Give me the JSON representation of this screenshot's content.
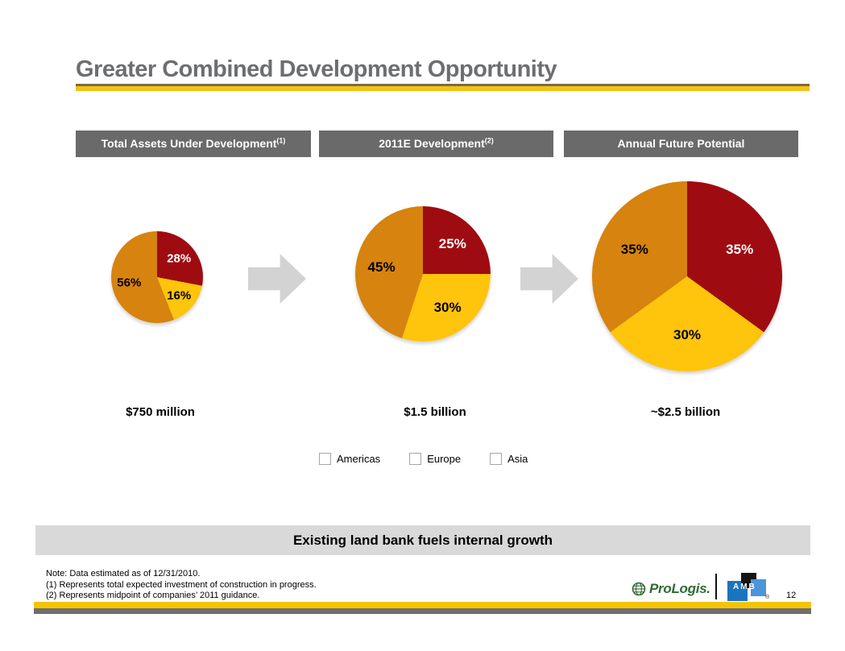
{
  "slide": {
    "title": "Greater Combined Development Opportunity",
    "page_number": "12"
  },
  "section_headers": [
    {
      "label": "Total Assets Under Development",
      "sup": "(1)"
    },
    {
      "label": "2011E Development",
      "sup": "(2)"
    },
    {
      "label": "Annual Future Potential",
      "sup": ""
    }
  ],
  "chart_data": [
    {
      "type": "pie",
      "title": "Total Assets Under Development",
      "labels": [
        "Americas",
        "Europe",
        "Asia"
      ],
      "values": [
        28,
        16,
        56
      ],
      "unit": "%",
      "total_label": "$750 million",
      "start_angle_deg": 0,
      "direction": "clockwise"
    },
    {
      "type": "pie",
      "title": "2011E Development",
      "labels": [
        "Americas",
        "Europe",
        "Asia"
      ],
      "values": [
        25,
        30,
        45
      ],
      "unit": "%",
      "total_label": "$1.5 billion",
      "start_angle_deg": 0,
      "direction": "clockwise"
    },
    {
      "type": "pie",
      "title": "Annual Future Potential",
      "labels": [
        "Americas",
        "Europe",
        "Asia"
      ],
      "values": [
        35,
        30,
        35
      ],
      "unit": "%",
      "total_label": "~$2.5 billion",
      "start_angle_deg": 0,
      "direction": "clockwise"
    }
  ],
  "legend": [
    {
      "label": "Americas",
      "color": "#9E0C11"
    },
    {
      "label": "Europe",
      "color": "#FFC40C"
    },
    {
      "label": "Asia",
      "color": "#D6830F"
    }
  ],
  "colors": {
    "americas": "#9E0C11",
    "europe": "#FFC40C",
    "asia": "#D6830F",
    "header_bar": "#6A6A6A",
    "banner_bg": "#D9D9D9",
    "gold_rule": "#F3C317",
    "title_text": "#6D6E71",
    "arrow": "#D3D3D3"
  },
  "banner": {
    "text": "Existing land bank fuels internal growth"
  },
  "notes": [
    "Note: Data estimated as of 12/31/2010.",
    "(1) Represents total expected investment of construction in progress.",
    "(2) Represents midpoint of companies’ 2011 guidance."
  ],
  "footer": {
    "prologis_label": "ProLogis.",
    "amb_label": "AMB",
    "amb_reg": "®"
  }
}
